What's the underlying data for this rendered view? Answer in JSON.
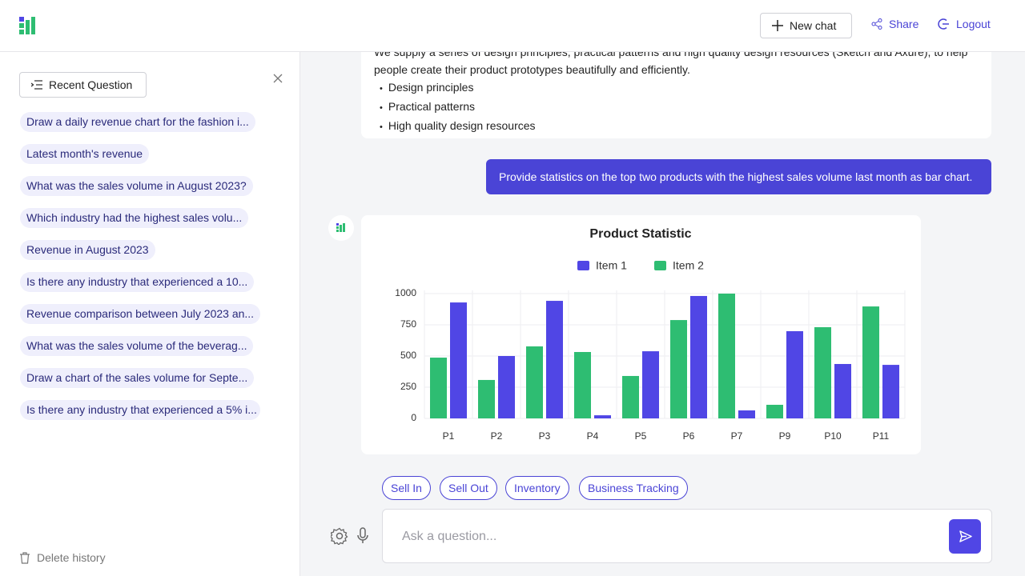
{
  "header": {
    "new_chat": "New chat",
    "share": "Share",
    "logout": "Logout"
  },
  "sidebar": {
    "title": "Recent Question",
    "questions": [
      "Draw a daily revenue chart for the fashion i...",
      "Latest month's revenue",
      "What was the sales volume in August 2023?",
      "Which industry had the highest sales volu...",
      "Revenue in August 2023",
      "Is there any industry that experienced a 10...",
      "Revenue comparison between July 2023 an...",
      "What was the sales volume of the beverag...",
      "Draw a chart of the sales volume for Septe...",
      "Is there any industry that experienced a 5% i..."
    ],
    "delete": "Delete history"
  },
  "conversation": {
    "intro": "We supply a series of design principles, practical patterns and high quality design resources (Sketch and Axure), to help people create their product prototypes beautifully and efficiently.",
    "bullets": [
      "Design principles",
      "Practical patterns",
      "High quality design resources"
    ],
    "user_message": "Provide statistics on the top two products with the highest sales volume last month as bar chart."
  },
  "chart_data": {
    "type": "bar",
    "title": "Product Statistic",
    "categories": [
      "P1",
      "P2",
      "P3",
      "P4",
      "P5",
      "P6",
      "P7",
      "P9",
      "P10",
      "P11"
    ],
    "series": [
      {
        "name": "Item 1",
        "color": "#5046e5",
        "values": [
          929,
          500,
          942,
          25,
          538,
          981,
          64,
          699,
          436,
          429
        ]
      },
      {
        "name": "Item 2",
        "color": "#2ebd72",
        "values": [
          487,
          308,
          577,
          532,
          340,
          788,
          1000,
          109,
          731,
          897
        ]
      }
    ],
    "ylim": [
      0,
      1000
    ],
    "yticks": [
      0,
      250,
      500,
      750,
      1000
    ],
    "grid": true
  },
  "chips": [
    "Sell In",
    "Sell Out",
    "Inventory",
    "Business Tracking"
  ],
  "input": {
    "placeholder": "Ask a question..."
  }
}
